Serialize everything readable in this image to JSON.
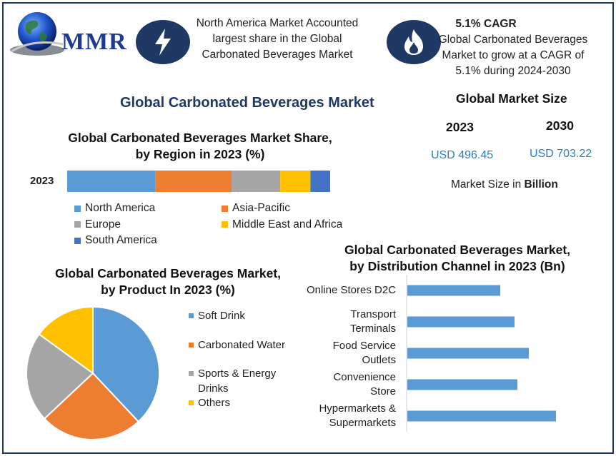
{
  "logo": {
    "text": "MMR"
  },
  "header": {
    "box1_text": "North America Market Accounted largest share in the Global Carbonated Beverages Market",
    "box2_title": "5.1% CAGR",
    "box2_text": "Global Carbonated Beverages Market to grow at a CAGR of 5.1% during 2024-2030",
    "box1_icon": "lightning-icon",
    "box2_icon": "flame-icon"
  },
  "main_title": "Global Carbonated Beverages Market",
  "market_size": {
    "title": "Global Market Size",
    "year1": "2023",
    "year2": "2030",
    "value1": "USD 496.45",
    "value2": "USD 703.22",
    "note_prefix": "Market Size in ",
    "note_bold": "Billion"
  },
  "chart_data": [
    {
      "type": "bar",
      "orientation": "horizontal-stacked",
      "title_line1": "Global Carbonated Beverages Market Share,",
      "title_line2": "by Region in 2023 (%)",
      "categories": [
        "2023"
      ],
      "series": [
        {
          "name": "North America",
          "values": [
            33.5
          ],
          "color": "#5b9bd5"
        },
        {
          "name": "Asia-Pacific",
          "values": [
            29
          ],
          "color": "#ed7d31"
        },
        {
          "name": "Europe",
          "values": [
            18.5
          ],
          "color": "#a5a5a5"
        },
        {
          "name": "Middle East and Africa",
          "values": [
            11.5
          ],
          "color": "#ffc000"
        },
        {
          "name": "South America",
          "values": [
            7.5
          ],
          "color": "#4472c4"
        }
      ],
      "legend_position": "bottom"
    },
    {
      "type": "pie",
      "title_line1": "Global Carbonated Beverages Market,",
      "title_line2": "by Product In 2023 (%)",
      "slices": [
        {
          "name": "Soft Drink",
          "value": 38,
          "color": "#5b9bd5"
        },
        {
          "name": "Carbonated Water",
          "value": 25,
          "color": "#ed7d31"
        },
        {
          "name": "Sports & Energy Drinks",
          "value": 22,
          "color": "#a5a5a5"
        },
        {
          "name": "Others",
          "value": 15,
          "color": "#ffc000"
        }
      ],
      "legend_labels": [
        "Soft Drink",
        "Carbonated Water",
        "Sports & Energy",
        "Drinks",
        "Others"
      ],
      "legend_position": "right"
    },
    {
      "type": "bar",
      "orientation": "horizontal",
      "title_line1": "Global Carbonated Beverages Market,",
      "title_line2": "by Distribution Channel in 2023 (Bn)",
      "categories": [
        "Online Stores D2C",
        "Transport Terminals",
        "Food Service Outlets",
        "Convenience Store",
        "Hypermarkets & Supermarkets"
      ],
      "category_lines": [
        [
          "Online Stores D2C"
        ],
        [
          "Transport",
          "Terminals"
        ],
        [
          "Food Service",
          "Outlets"
        ],
        [
          "Convenience",
          "Store"
        ],
        [
          "Hypermarkets &",
          "Supermarkets"
        ]
      ],
      "values": [
        65,
        75,
        85,
        77,
        104
      ],
      "color": "#5b9bd5",
      "grid": false
    }
  ]
}
